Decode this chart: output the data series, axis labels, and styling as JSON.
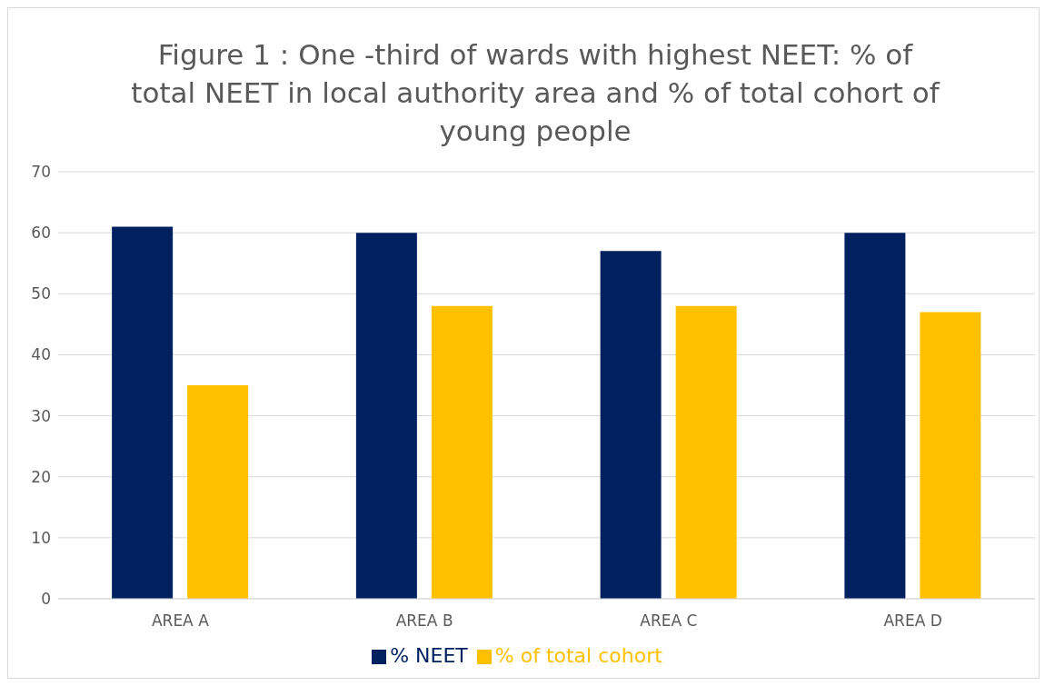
{
  "chart_data": {
    "type": "bar",
    "title": "Figure 1 : One -third of wards with highest NEET: % of total NEET in local authority area and % of total cohort of young people",
    "categories": [
      "AREA A",
      "AREA B",
      "AREA C",
      "AREA D"
    ],
    "series": [
      {
        "name": "% NEET",
        "color": "#002060",
        "values": [
          61,
          60,
          57,
          60
        ]
      },
      {
        "name": "% of total cohort",
        "color": "#ffc000",
        "values": [
          35,
          48,
          48,
          47
        ]
      }
    ],
    "ylim": [
      0,
      70
    ],
    "yticks": [
      0,
      10,
      20,
      30,
      40,
      50,
      60,
      70
    ],
    "grid": "y",
    "legend": "bottom"
  }
}
